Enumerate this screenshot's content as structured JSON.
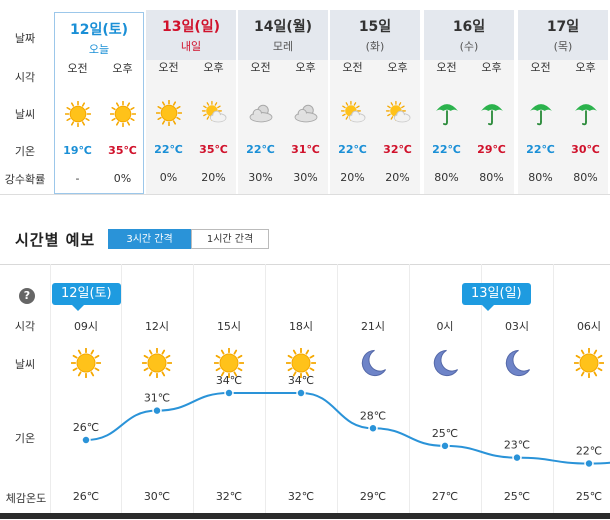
{
  "weekly": {
    "row_labels": {
      "date": "날짜",
      "time": "시각",
      "weather": "날씨",
      "temp": "기온",
      "rain": "강수확률"
    },
    "days": [
      {
        "name": "12일(토)",
        "sub": "오늘",
        "am": "오전",
        "pm": "오후",
        "am_icon": "sun-icon",
        "pm_icon": "sun-icon",
        "low": "19℃",
        "high": "35℃",
        "rain_am": "-",
        "rain_pm": "0%"
      },
      {
        "name": "13일(일)",
        "sub": "내일",
        "am": "오전",
        "pm": "오후",
        "am_icon": "sun-icon",
        "pm_icon": "partly-cloudy-icon",
        "low": "22℃",
        "high": "35℃",
        "rain_am": "0%",
        "rain_pm": "20%"
      },
      {
        "name": "14일(월)",
        "sub": "모레",
        "am": "오전",
        "pm": "오후",
        "am_icon": "cloud-icon",
        "pm_icon": "cloud-icon",
        "low": "22℃",
        "high": "31℃",
        "rain_am": "30%",
        "rain_pm": "30%"
      },
      {
        "name": "15일",
        "sub": "(화)",
        "am": "오전",
        "pm": "오후",
        "am_icon": "partly-cloudy-icon",
        "pm_icon": "partly-cloudy-icon",
        "low": "22℃",
        "high": "32℃",
        "rain_am": "20%",
        "rain_pm": "20%"
      },
      {
        "name": "16일",
        "sub": "(수)",
        "am": "오전",
        "pm": "오후",
        "am_icon": "umbrella-icon",
        "pm_icon": "umbrella-icon",
        "low": "22℃",
        "high": "29℃",
        "rain_am": "80%",
        "rain_pm": "80%"
      },
      {
        "name": "17일",
        "sub": "(목)",
        "am": "오전",
        "pm": "오후",
        "am_icon": "umbrella-icon",
        "pm_icon": "umbrella-icon",
        "low": "22℃",
        "high": "30℃",
        "rain_am": "80%",
        "rain_pm": "80%"
      }
    ]
  },
  "hourly": {
    "title": "시간별 예보",
    "tab_3h": "3시간 간격",
    "tab_1h": "1시간 간격",
    "help": "?",
    "row_labels": {
      "time": "시각",
      "weather": "날씨",
      "temp": "기온",
      "feels": "체감온도"
    },
    "day_bubbles": [
      "12일(토)",
      "13일(일)"
    ],
    "hours": [
      {
        "time": "09시",
        "icon": "sun-icon",
        "temp": "26℃",
        "temp_value": 26,
        "feels": "26℃"
      },
      {
        "time": "12시",
        "icon": "sun-icon",
        "temp": "31℃",
        "temp_value": 31,
        "feels": "30℃"
      },
      {
        "time": "15시",
        "icon": "sun-icon",
        "temp": "34℃",
        "temp_value": 34,
        "feels": "32℃"
      },
      {
        "time": "18시",
        "icon": "sun-icon",
        "temp": "34℃",
        "temp_value": 34,
        "feels": "32℃"
      },
      {
        "time": "21시",
        "icon": "moon-icon",
        "temp": "28℃",
        "temp_value": 28,
        "feels": "29℃"
      },
      {
        "time": "0시",
        "icon": "moon-icon",
        "temp": "25℃",
        "temp_value": 25,
        "feels": "27℃"
      },
      {
        "time": "03시",
        "icon": "moon-icon",
        "temp": "23℃",
        "temp_value": 23,
        "feels": "25℃"
      },
      {
        "time": "06시",
        "icon": "sun-icon",
        "temp": "22℃",
        "temp_value": 22,
        "feels": "25℃"
      }
    ]
  },
  "colors": {
    "accent": "#1a8fd6",
    "sunday": "#d0112b",
    "line": "#2a93d8"
  }
}
